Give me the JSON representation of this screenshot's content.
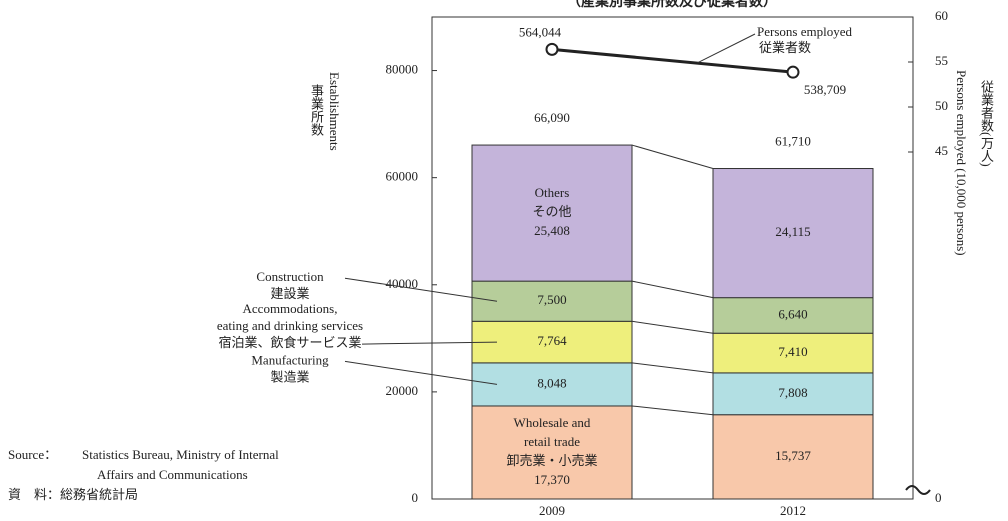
{
  "chart_data": {
    "type": "stacked_bar_line",
    "title": "（産業別事業所数及び従業者数）",
    "y_label": "Establishments",
    "y_label_ja": "事業所数",
    "y2_label": "Persons employed (10,000 persons)",
    "y2_label_ja": "従業者数(万人)",
    "categories": [
      "2009",
      "2012"
    ],
    "ylim": [
      0,
      90000
    ],
    "yticks": [
      0,
      20000,
      40000,
      60000,
      80000
    ],
    "y2lim": [
      0,
      60
    ],
    "y2ticks": [
      0,
      45,
      50,
      55,
      60
    ],
    "y2_axis_break": true,
    "series": [
      {
        "label_lines": [
          "Wholesale and",
          "retail trade",
          "卸売業・小売業"
        ],
        "label_position": "inside",
        "color": "#f8c8aa",
        "values": [
          17370,
          15737
        ],
        "value_labels": [
          "17,370",
          "15,737"
        ]
      },
      {
        "label_lines": [
          "Manufacturing",
          "製造業"
        ],
        "label_position": "left",
        "color": "#b2dfe3",
        "values": [
          8048,
          7808
        ],
        "value_labels": [
          "8,048",
          "7,808"
        ]
      },
      {
        "label_lines": [
          "Accommodations,",
          "eating and drinking services",
          "宿泊業、飲食サービス業"
        ],
        "label_position": "left",
        "color": "#eeef7c",
        "values": [
          7764,
          7410
        ],
        "value_labels": [
          "7,764",
          "7,410"
        ]
      },
      {
        "label_lines": [
          "Construction",
          "建設業"
        ],
        "label_position": "left",
        "color": "#b6cd9a",
        "values": [
          7500,
          6640
        ],
        "value_labels": [
          "7,500",
          "6,640"
        ]
      },
      {
        "label_lines": [
          "Others",
          "その他"
        ],
        "label_position": "inside",
        "color": "#c4b4da",
        "values": [
          25408,
          24115
        ],
        "value_labels": [
          "25,408",
          "24,115"
        ]
      },
      {
        "label_lines": [
          "Persons employed",
          "従業者数"
        ],
        "type": "line",
        "axis": "y2",
        "color": "#222222",
        "values": [
          56.4044,
          53.8709
        ],
        "value_labels": [
          "564,044",
          "538,709"
        ]
      }
    ],
    "totals": {
      "values": [
        66090,
        61710
      ],
      "value_labels": [
        "66,090",
        "61,710"
      ]
    },
    "source_lines": [
      "Source：",
      "Statistics Bureau, Ministry of Internal",
      "Affairs and Communications",
      "資　料：総務省統計局"
    ]
  }
}
